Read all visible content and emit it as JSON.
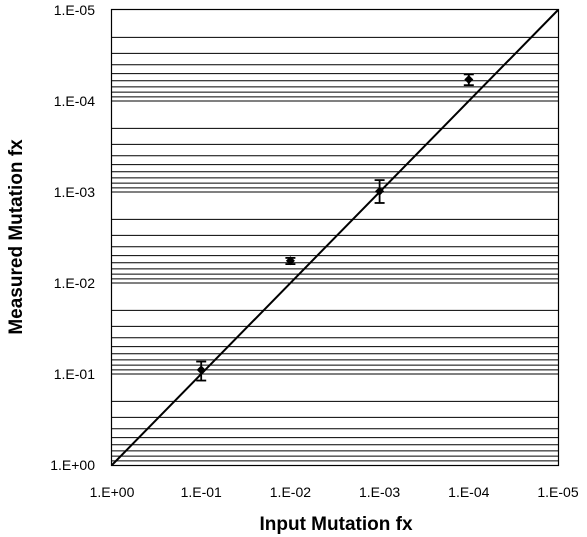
{
  "chart_data": {
    "type": "scatter",
    "xlabel": "Input Mutation fx",
    "ylabel": "Measured Mutation fx",
    "x_scale": "log-reversed",
    "y_scale": "log-reversed",
    "xlim": [
      1,
      1e-05
    ],
    "ylim": [
      1,
      1e-05
    ],
    "x_ticks": [
      {
        "value": 1,
        "label": "1.E+00"
      },
      {
        "value": 0.1,
        "label": "1.E-01"
      },
      {
        "value": 0.01,
        "label": "1.E-02"
      },
      {
        "value": 0.001,
        "label": "1.E-03"
      },
      {
        "value": 0.0001,
        "label": "1.E-04"
      },
      {
        "value": 1e-05,
        "label": "1.E-05"
      }
    ],
    "y_ticks": [
      {
        "value": 1,
        "label": "1.E+00"
      },
      {
        "value": 0.1,
        "label": "1.E-01"
      },
      {
        "value": 0.01,
        "label": "1.E-02"
      },
      {
        "value": 0.001,
        "label": "1.E-03"
      },
      {
        "value": 0.0001,
        "label": "1.E-04"
      },
      {
        "value": 1e-05,
        "label": "1.E-05"
      }
    ],
    "grid": "horizontal-minor-log",
    "points": [
      {
        "x": 0.1,
        "y": 0.09,
        "err_low": 0.073,
        "err_high": 0.118
      },
      {
        "x": 0.01,
        "y": 0.0057,
        "err_low": 0.0053,
        "err_high": 0.0062
      },
      {
        "x": 0.001,
        "y": 0.00098,
        "err_low": 0.00074,
        "err_high": 0.00132
      },
      {
        "x": 0.0001,
        "y": 5.8e-05,
        "err_low": 5.1e-05,
        "err_high": 6.7e-05
      }
    ],
    "reference_line": {
      "from": [
        1,
        1
      ],
      "to": [
        1e-05,
        1e-05
      ]
    },
    "colors": {
      "marks": "#000000",
      "background": "#ffffff"
    }
  }
}
